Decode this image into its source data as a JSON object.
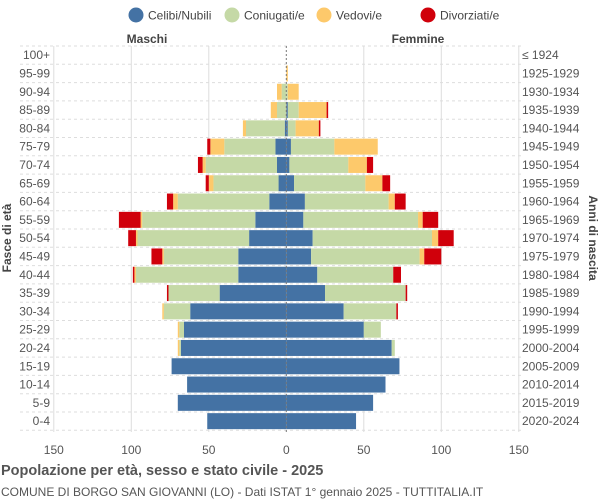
{
  "chart_data": {
    "type": "bar",
    "orientation": "horizontal-pyramid",
    "title": "Popolazione per età, sesso e stato civile - 2025",
    "subtitle": "COMUNE DI BORGO SAN GIOVANNI (LO) - Dati ISTAT 1° gennaio 2025 - TUTTITALIA.IT",
    "ylabel_left": "Fasce di età",
    "ylabel_right": "Anni di nascita",
    "left_group": "Maschi",
    "right_group": "Femmine",
    "xlim": [
      -150,
      150
    ],
    "xticks": [
      "150",
      "100",
      "50",
      "0",
      "50",
      "100",
      "150"
    ],
    "grid": true,
    "legend_position": "top",
    "age_groups": [
      "100+",
      "95-99",
      "90-94",
      "85-89",
      "80-84",
      "75-79",
      "70-74",
      "65-69",
      "60-64",
      "55-59",
      "50-54",
      "45-49",
      "40-44",
      "35-39",
      "30-34",
      "25-29",
      "20-24",
      "15-19",
      "10-14",
      "5-9",
      "0-4"
    ],
    "birth_years": [
      "≤ 1924",
      "1925-1929",
      "1930-1934",
      "1935-1939",
      "1940-1944",
      "1945-1949",
      "1950-1954",
      "1955-1959",
      "1960-1964",
      "1965-1969",
      "1970-1974",
      "1975-1979",
      "1980-1984",
      "1985-1989",
      "1990-1994",
      "1995-1999",
      "2000-2004",
      "2005-2009",
      "2010-2014",
      "2015-2019",
      "2020-2024"
    ],
    "series": [
      {
        "name": "Celibi/Nubili",
        "color": "#4472a4",
        "male": [
          0,
          0,
          0,
          0,
          1,
          7,
          6,
          5,
          11,
          20,
          24,
          31,
          31,
          43,
          62,
          66,
          68,
          74,
          64,
          70,
          51
        ],
        "female": [
          0,
          0,
          0,
          1,
          1,
          3,
          2,
          5,
          12,
          11,
          17,
          16,
          20,
          25,
          37,
          50,
          68,
          73,
          64,
          56,
          45
        ]
      },
      {
        "name": "Coniugati/e",
        "color": "#c5d9a6",
        "male": [
          0,
          0,
          3,
          6,
          25,
          33,
          46,
          42,
          59,
          73,
          72,
          48,
          66,
          33,
          17,
          3,
          1,
          0,
          0,
          0,
          0
        ],
        "female": [
          0,
          0,
          1,
          7,
          5,
          28,
          38,
          46,
          54,
          74,
          77,
          70,
          49,
          52,
          34,
          11,
          2,
          0,
          0,
          0,
          0
        ]
      },
      {
        "name": "Vedovi/e",
        "color": "#fdc96b",
        "male": [
          0,
          0,
          3,
          4,
          2,
          9,
          2,
          3,
          3,
          1,
          1,
          1,
          1,
          0,
          1,
          1,
          1,
          0,
          0,
          0,
          0
        ],
        "female": [
          0,
          1,
          7,
          18,
          15,
          28,
          12,
          11,
          4,
          3,
          4,
          3,
          0,
          0,
          0,
          0,
          0,
          0,
          0,
          0,
          0
        ]
      },
      {
        "name": "Divorziati/e",
        "color": "#d0000b",
        "male": [
          0,
          0,
          0,
          0,
          0,
          2,
          3,
          2,
          4,
          14,
          5,
          7,
          1,
          1,
          0,
          0,
          0,
          0,
          0,
          0,
          0
        ],
        "female": [
          0,
          0,
          0,
          1,
          1,
          0,
          4,
          5,
          7,
          10,
          10,
          11,
          5,
          1,
          1,
          0,
          0,
          0,
          0,
          0,
          0
        ]
      }
    ]
  }
}
